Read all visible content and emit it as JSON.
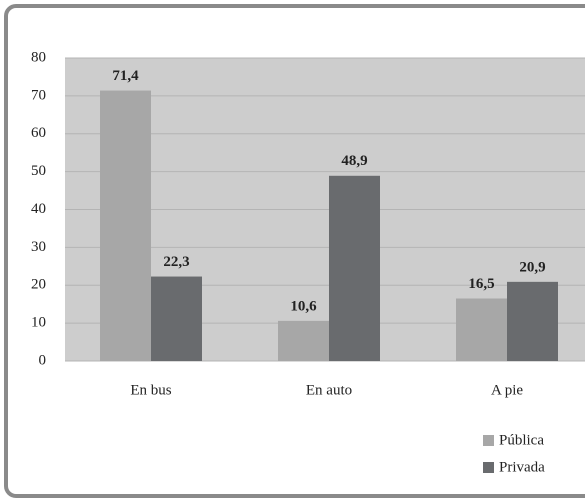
{
  "chart_data": {
    "type": "bar",
    "categories": [
      "En bus",
      "En auto",
      "A pie"
    ],
    "series": [
      {
        "name": "Pública",
        "color": "#a7a7a7",
        "values": [
          71.4,
          10.6,
          16.5
        ],
        "value_labels": [
          "71,4",
          "10,6",
          "16,5"
        ]
      },
      {
        "name": "Privada",
        "color": "#696b6e",
        "values": [
          22.3,
          48.9,
          20.9
        ],
        "value_labels": [
          "22,3",
          "48,9",
          "20,9"
        ]
      }
    ],
    "ylim": [
      0,
      80
    ],
    "yticks": [
      0,
      10,
      20,
      30,
      40,
      50,
      60,
      70,
      80
    ],
    "grid": true,
    "legend": "bottom-right"
  }
}
